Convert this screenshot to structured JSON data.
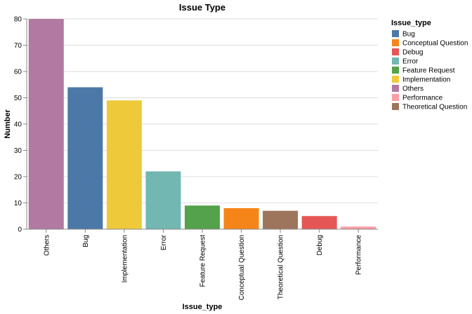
{
  "chart_data": {
    "type": "bar",
    "title": "Issue Type",
    "xlabel": "Issue_type",
    "ylabel": "Number",
    "ylim": [
      0,
      80
    ],
    "yticks": [
      0,
      10,
      20,
      30,
      40,
      50,
      60,
      70,
      80
    ],
    "grid": true,
    "categories": [
      "Others",
      "Bug",
      "Implementation",
      "Error",
      "Feature Request",
      "Conceptual Question",
      "Theoretical Question",
      "Debug",
      "Performance"
    ],
    "values": [
      80,
      54,
      49,
      22,
      9,
      8,
      7,
      5,
      1
    ],
    "colors": {
      "Bug": "#4c78a8",
      "Conceptual Question": "#f58518",
      "Debug": "#e45756",
      "Error": "#72b7b2",
      "Feature Request": "#54a24b",
      "Implementation": "#eeca3b",
      "Others": "#b279a2",
      "Performance": "#ff9da6",
      "Theoretical Question": "#9d755d"
    },
    "legend": {
      "title": "Issue_type",
      "position": "right",
      "entries": [
        "Bug",
        "Conceptual Question",
        "Debug",
        "Error",
        "Feature Request",
        "Implementation",
        "Others",
        "Performance",
        "Theoretical Question"
      ]
    }
  }
}
